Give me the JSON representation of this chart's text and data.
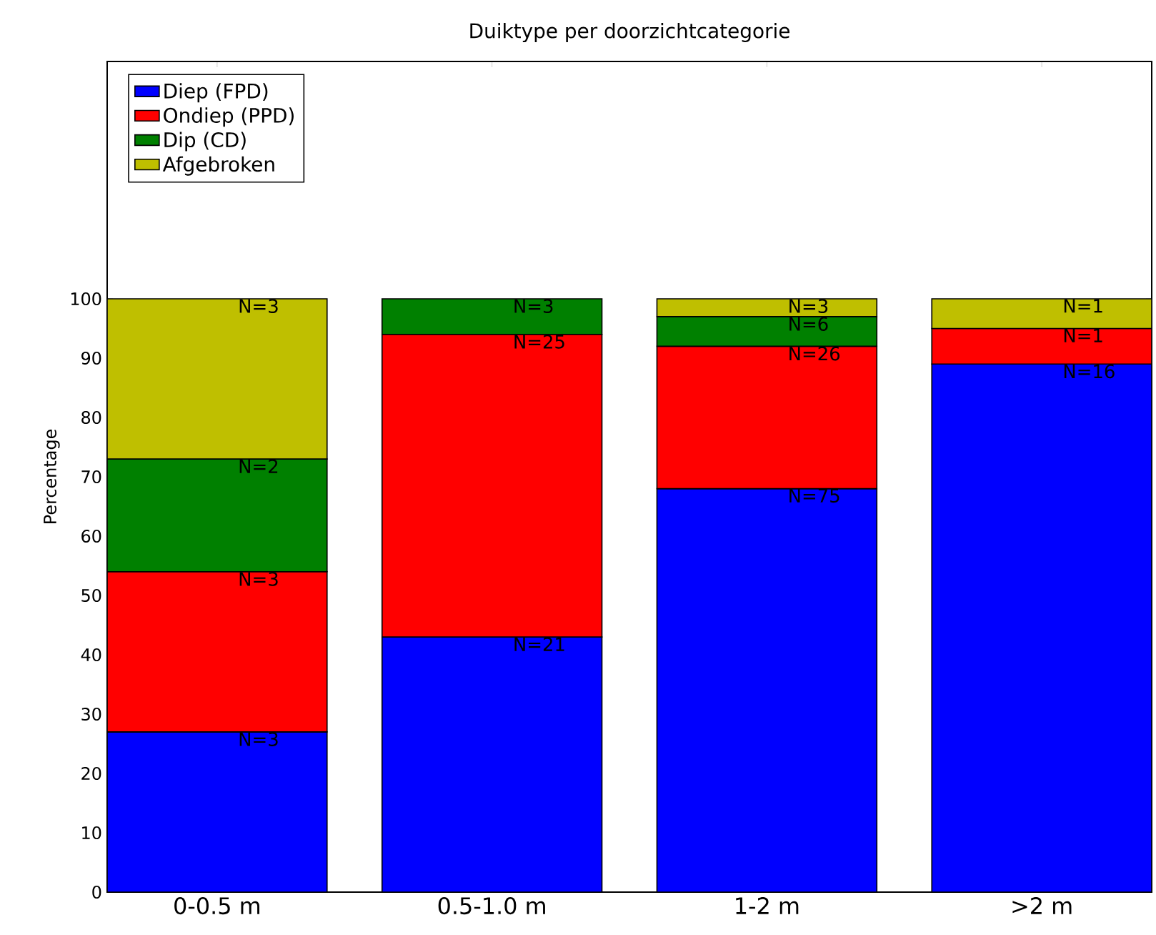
{
  "chart_data": {
    "type": "bar",
    "stacked": true,
    "title": "Duiktype per doorzichtcategorie",
    "ylabel": "Percentage",
    "categories": [
      "0-0.5 m",
      "0.5-1.0 m",
      "1-2 m",
      ">2 m"
    ],
    "series": [
      {
        "name": "Diep (FPD)",
        "color": "#0000ff",
        "values": [
          27,
          43,
          68,
          89
        ]
      },
      {
        "name": "Ondiep (PPD)",
        "color": "#ff0000",
        "values": [
          27,
          51,
          24,
          6
        ]
      },
      {
        "name": "Dip (CD)",
        "color": "#008000",
        "values": [
          19,
          6,
          5,
          null
        ]
      },
      {
        "name": "Afgebroken",
        "color": "#bfbf00",
        "values": [
          27,
          null,
          3,
          5
        ]
      }
    ],
    "annotations": [
      {
        "text": "N=3",
        "x": "0-0.5 m",
        "y": 27
      },
      {
        "text": "N=3",
        "x": "0-0.5 m",
        "y": 54
      },
      {
        "text": "N=2",
        "x": "0-0.5 m",
        "y": 73
      },
      {
        "text": "N=3",
        "x": "0-0.5 m",
        "y": 100
      },
      {
        "text": "N=21",
        "x": "0.5-1.0 m",
        "y": 43
      },
      {
        "text": "N=25",
        "x": "0.5-1.0 m",
        "y": 94
      },
      {
        "text": "N=3",
        "x": "0.5-1.0 m",
        "y": 100
      },
      {
        "text": "N=75",
        "x": "1-2 m",
        "y": 68
      },
      {
        "text": "N=26",
        "x": "1-2 m",
        "y": 92
      },
      {
        "text": "N=6",
        "x": "1-2 m",
        "y": 97
      },
      {
        "text": "N=3",
        "x": "1-2 m",
        "y": 100
      },
      {
        "text": "N=16",
        "x": ">2 m",
        "y": 89
      },
      {
        "text": "N=1",
        "x": ">2 m",
        "y": 95
      },
      {
        "text": "N=1",
        "x": ">2 m",
        "y": 100
      }
    ],
    "ylim": [
      0,
      140
    ],
    "yticks": [
      0,
      10,
      20,
      30,
      40,
      50,
      60,
      70,
      80,
      90,
      100
    ],
    "legend": "top left"
  }
}
